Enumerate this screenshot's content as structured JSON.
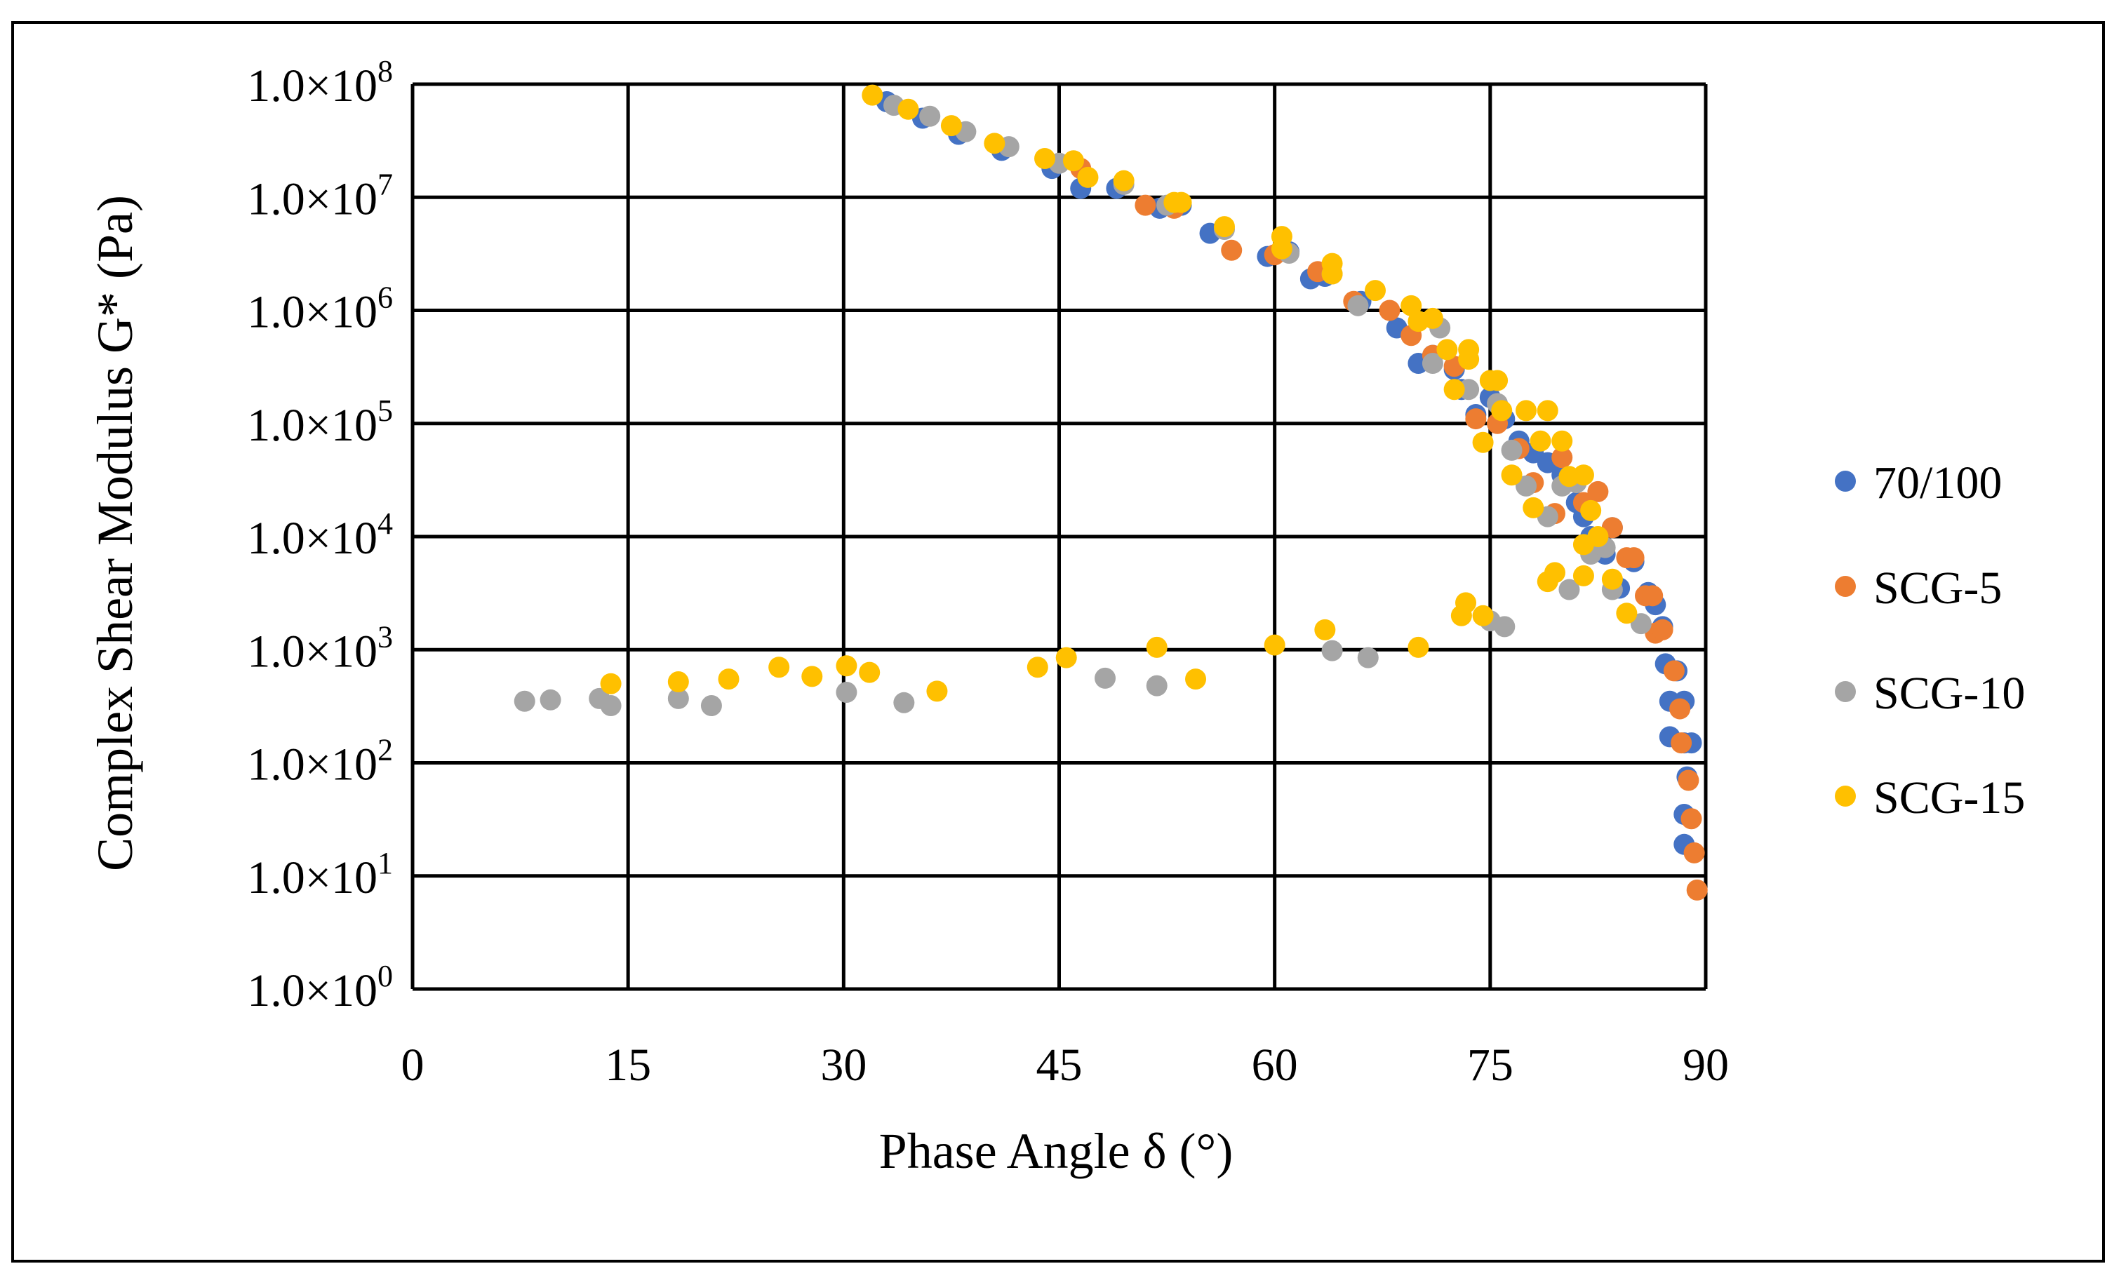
{
  "chart_data": {
    "type": "scatter",
    "title": "",
    "xlabel": "Phase Angle δ (°)",
    "ylabel": "Complex Shear Modulus G* (Pa)",
    "xlim": [
      0,
      90
    ],
    "ylim_log10": [
      0,
      8
    ],
    "x_ticks": [
      "0",
      "15",
      "30",
      "45",
      "60",
      "75",
      "90"
    ],
    "y_ticks": [
      {
        "mantissa": "1.0×10",
        "exp": "0"
      },
      {
        "mantissa": "1.0×10",
        "exp": "1"
      },
      {
        "mantissa": "1.0×10",
        "exp": "2"
      },
      {
        "mantissa": "1.0×10",
        "exp": "3"
      },
      {
        "mantissa": "1.0×10",
        "exp": "4"
      },
      {
        "mantissa": "1.0×10",
        "exp": "5"
      },
      {
        "mantissa": "1.0×10",
        "exp": "6"
      },
      {
        "mantissa": "1.0×10",
        "exp": "7"
      },
      {
        "mantissa": "1.0×10",
        "exp": "8"
      }
    ],
    "grid": true,
    "legend_position": "right",
    "series": [
      {
        "name": "70/100",
        "color": "#4472C4",
        "points": [
          [
            33,
            70000000.0
          ],
          [
            35.5,
            50000000.0
          ],
          [
            38,
            36000000.0
          ],
          [
            41,
            26000000.0
          ],
          [
            44.5,
            18000000.0
          ],
          [
            46.5,
            12000000.0
          ],
          [
            49,
            12000000.0
          ],
          [
            52,
            8000000.0
          ],
          [
            53.5,
            8500000.0
          ],
          [
            55.5,
            4800000.0
          ],
          [
            59.5,
            3000000.0
          ],
          [
            61,
            3300000.0
          ],
          [
            62.5,
            1900000.0
          ],
          [
            63.5,
            2000000.0
          ],
          [
            66,
            1200000.0
          ],
          [
            68.5,
            700000.0
          ],
          [
            70,
            340000.0
          ],
          [
            71,
            400000.0
          ],
          [
            72.5,
            300000.0
          ],
          [
            73,
            200000.0
          ],
          [
            74,
            120000.0
          ],
          [
            75,
            170000.0
          ],
          [
            76,
            110000.0
          ],
          [
            77,
            70000.0
          ],
          [
            78,
            55000.0
          ],
          [
            79,
            45000.0
          ],
          [
            80,
            35000.0
          ],
          [
            81,
            20000.0
          ],
          [
            81.5,
            15000.0
          ],
          [
            82,
            10000.0
          ],
          [
            83,
            7000.0
          ],
          [
            83.5,
            12000.0
          ],
          [
            84,
            3500.0
          ],
          [
            85,
            6000.0
          ],
          [
            86,
            3200.0
          ],
          [
            86.5,
            2500.0
          ],
          [
            87,
            1600.0
          ],
          [
            87.2,
            750.0
          ],
          [
            87.5,
            350.0
          ],
          [
            87.5,
            170.0
          ],
          [
            88,
            650.0
          ],
          [
            88.5,
            350.0
          ],
          [
            88.5,
            150.0
          ],
          [
            88.7,
            75.0
          ],
          [
            88.5,
            35.0
          ],
          [
            88.5,
            19.0
          ],
          [
            89,
            150.0
          ]
        ]
      },
      {
        "name": "SCG-5",
        "color": "#ED7D31",
        "points": [
          [
            46.5,
            18000000.0
          ],
          [
            51,
            8500000.0
          ],
          [
            53,
            8000000.0
          ],
          [
            57,
            3400000.0
          ],
          [
            60,
            3100000.0
          ],
          [
            63,
            2200000.0
          ],
          [
            65.5,
            1200000.0
          ],
          [
            68,
            1000000.0
          ],
          [
            69.5,
            600000.0
          ],
          [
            71,
            400000.0
          ],
          [
            72.5,
            320000.0
          ],
          [
            74,
            110000.0
          ],
          [
            75.5,
            100000.0
          ],
          [
            77,
            60000.0
          ],
          [
            78,
            30000.0
          ],
          [
            79.5,
            16000.0
          ],
          [
            80,
            50000.0
          ],
          [
            81.5,
            20000.0
          ],
          [
            82.5,
            25000.0
          ],
          [
            83.5,
            12000.0
          ],
          [
            84.5,
            6500.0
          ],
          [
            85,
            6500.0
          ],
          [
            85.8,
            3000.0
          ],
          [
            86.3,
            3000.0
          ],
          [
            86.5,
            1400.0
          ],
          [
            87,
            1500.0
          ],
          [
            87.8,
            650.0
          ],
          [
            88.2,
            300.0
          ],
          [
            88.3,
            150.0
          ],
          [
            88.8,
            70.0
          ],
          [
            89,
            32.0
          ],
          [
            89.2,
            16.0
          ],
          [
            89.4,
            7.5
          ]
        ]
      },
      {
        "name": "SCG-10",
        "color": "#A5A5A5",
        "points": [
          [
            7.8,
            350.0
          ],
          [
            9.6,
            360.0
          ],
          [
            13,
            370.0
          ],
          [
            13.8,
            320.0
          ],
          [
            18.5,
            370.0
          ],
          [
            20.8,
            320.0
          ],
          [
            30.2,
            420.0
          ],
          [
            34.2,
            340.0
          ],
          [
            48.2,
            560.0
          ],
          [
            51.8,
            480.0
          ],
          [
            64,
            980.0
          ],
          [
            66.5,
            850.0
          ],
          [
            75,
            1800.0
          ],
          [
            76,
            1600.0
          ],
          [
            80.5,
            3400.0
          ],
          [
            83.5,
            3400.0
          ],
          [
            85.5,
            1700.0
          ],
          [
            33.5,
            65000000.0
          ],
          [
            36,
            52000000.0
          ],
          [
            38.5,
            38000000.0
          ],
          [
            41.5,
            28000000.0
          ],
          [
            45,
            20000000.0
          ],
          [
            49.5,
            13000000.0
          ],
          [
            52.5,
            8500000.0
          ],
          [
            56.5,
            5200000.0
          ],
          [
            61,
            3200000.0
          ],
          [
            64,
            2100000.0
          ],
          [
            65.8,
            1100000.0
          ],
          [
            71,
            340000.0
          ],
          [
            71.5,
            700000.0
          ],
          [
            73.5,
            200000.0
          ],
          [
            75.5,
            150000.0
          ],
          [
            76.5,
            58000.0
          ],
          [
            77.5,
            28000.0
          ],
          [
            79,
            15000.0
          ],
          [
            80,
            28000.0
          ],
          [
            81,
            30000.0
          ],
          [
            82,
            7000.0
          ],
          [
            83,
            8000.0
          ]
        ]
      },
      {
        "name": "SCG-15",
        "color": "#FFC000",
        "points": [
          [
            13.8,
            500.0
          ],
          [
            18.5,
            520.0
          ],
          [
            22,
            550.0
          ],
          [
            25.5,
            700.0
          ],
          [
            27.8,
            580.0
          ],
          [
            30.2,
            720.0
          ],
          [
            31.8,
            630.0
          ],
          [
            36.5,
            430.0
          ],
          [
            43.5,
            700.0
          ],
          [
            45.5,
            850.0
          ],
          [
            51.8,
            1050.0
          ],
          [
            54.5,
            550.0
          ],
          [
            60,
            1100.0
          ],
          [
            63.5,
            1500.0
          ],
          [
            70,
            1050.0
          ],
          [
            73,
            2000.0
          ],
          [
            73.3,
            2600.0
          ],
          [
            74.5,
            2000.0
          ],
          [
            32,
            80000000.0
          ],
          [
            34.5,
            60000000.0
          ],
          [
            37.5,
            43000000.0
          ],
          [
            40.5,
            30000000.0
          ],
          [
            44,
            22000000.0
          ],
          [
            46,
            21000000.0
          ],
          [
            47,
            15000000.0
          ],
          [
            49.5,
            14000000.0
          ],
          [
            53,
            9000000.0
          ],
          [
            53.5,
            9000000.0
          ],
          [
            56.5,
            5500000.0
          ],
          [
            60.5,
            4500000.0
          ],
          [
            60.5,
            3500000.0
          ],
          [
            64,
            2600000.0
          ],
          [
            64,
            2100000.0
          ],
          [
            67,
            1500000.0
          ],
          [
            69.5,
            1100000.0
          ],
          [
            70,
            800000.0
          ],
          [
            71,
            850000.0
          ],
          [
            72,
            450000.0
          ],
          [
            72.5,
            200000.0
          ],
          [
            73.5,
            450000.0
          ],
          [
            73.5,
            370000.0
          ],
          [
            75,
            240000.0
          ],
          [
            75.5,
            240000.0
          ],
          [
            74.5,
            68000.0
          ],
          [
            75.8,
            130000.0
          ],
          [
            76.5,
            35000.0
          ],
          [
            77.5,
            130000.0
          ],
          [
            78,
            18000.0
          ],
          [
            78.5,
            70000.0
          ],
          [
            79,
            130000.0
          ],
          [
            80,
            70000.0
          ],
          [
            79,
            4000.0
          ],
          [
            79.5,
            4800.0
          ],
          [
            80.5,
            34000.0
          ],
          [
            81.5,
            35000.0
          ],
          [
            81.5,
            8500.0
          ],
          [
            81.5,
            4500.0
          ],
          [
            82,
            17000.0
          ],
          [
            82.5,
            10000.0
          ],
          [
            83.5,
            4200.0
          ],
          [
            84.5,
            2100.0
          ]
        ]
      }
    ]
  }
}
